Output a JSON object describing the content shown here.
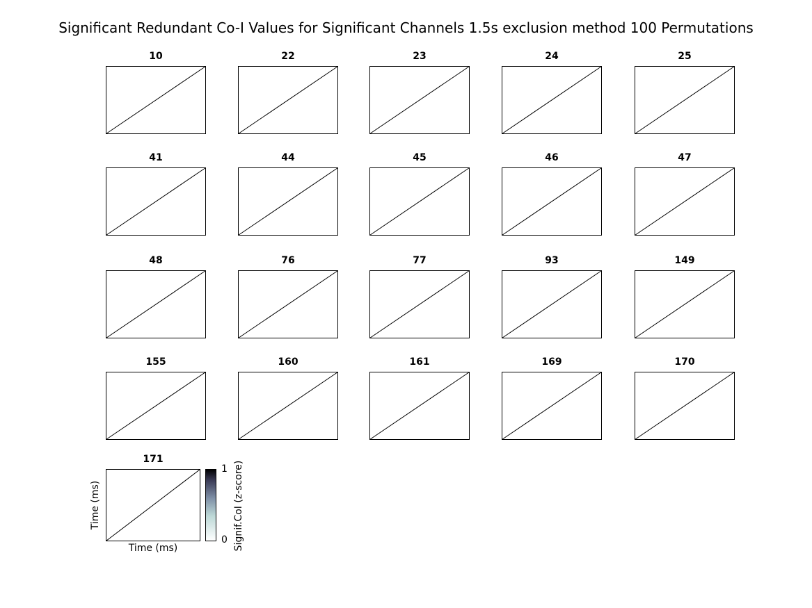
{
  "figure": {
    "title": "Significant Redundant Co-I Values for Significant Channels 1.5s exclusion method 100 Permutations"
  },
  "chart_data": {
    "type": "heatmap",
    "title": "Significant Redundant Co-I Values for Significant Channels 1.5s exclusion method 100 Permutations",
    "panels": [
      "10",
      "22",
      "23",
      "24",
      "25",
      "41",
      "44",
      "45",
      "46",
      "47",
      "48",
      "76",
      "77",
      "93",
      "149",
      "155",
      "160",
      "161",
      "169",
      "170",
      "171"
    ],
    "xlabel": "Time (ms)",
    "ylabel": "Time (ms)",
    "diagonal_line": true,
    "colorbar": {
      "label": "Signif.CoI (z-score)",
      "range": [
        0,
        1
      ],
      "ticks": [
        "0",
        "1"
      ],
      "colormap": "bone_r",
      "color_low": "#ffffff",
      "color_high": "#000000"
    }
  }
}
